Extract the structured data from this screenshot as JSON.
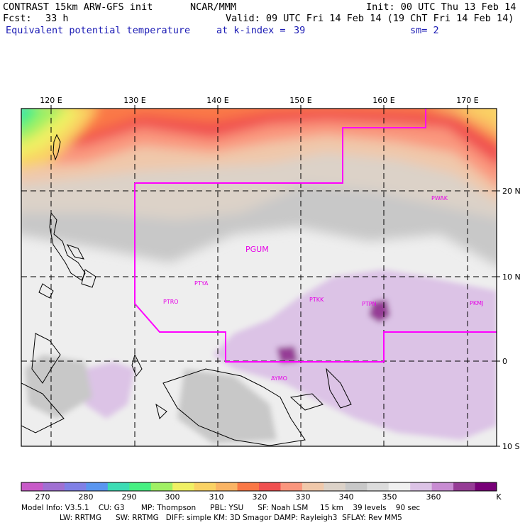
{
  "header": {
    "model": "CONTRAST 15km ARW-GFS init",
    "org": "NCAR/MMM",
    "init": "Init: 00 UTC Thu 13 Feb 14",
    "fcst_label": "Fcst:",
    "fcst_value": "33 h",
    "valid": "Valid: 09 UTC Fri 14 Feb 14 (19 ChT Fri 14 Feb 14)",
    "field": "Equivalent potential temperature",
    "level": "at k-index =",
    "level_value": "39",
    "smooth": "sm= 2"
  },
  "axes": {
    "lon_labels": [
      "120 E",
      "130 E",
      "140 E",
      "150 E",
      "160 E",
      "170 E"
    ],
    "lat_labels": [
      "20 N",
      "10 N",
      "0",
      "10 S"
    ]
  },
  "stations": [
    "PGUM",
    "PTYA",
    "PTRO",
    "PTKK",
    "PTPN",
    "PKMJ",
    "PWAK",
    "AYMO"
  ],
  "colorbar": {
    "labels": [
      "270",
      "280",
      "290",
      "300",
      "310",
      "320",
      "330",
      "340",
      "350",
      "360"
    ],
    "unit": "K",
    "colors": [
      "#c85ac8",
      "#a070d2",
      "#8080e6",
      "#5a96f0",
      "#3cdcb4",
      "#46f082",
      "#a0f064",
      "#f0f064",
      "#fad264",
      "#fab464",
      "#fa7846",
      "#f05050",
      "#fa967d",
      "#f0c8aa",
      "#dcd2c8",
      "#c8c8c8",
      "#dcdcdc",
      "#f0f0f0",
      "#dcc3e6",
      "#c88cd2",
      "#963c96",
      "#780078"
    ]
  },
  "footer": {
    "line1": "Model Info: V3.5.1    CU: G3       MP: Thompson      PBL: YSU      SF: Noah LSM     15 km    39 levels    90 sec",
    "line2": "LW: RRTMG      SW: RRTMG   DIFF: simple KM: 3D Smagor DAMP: Rayleigh3  SFLAY: Rev MM5"
  }
}
